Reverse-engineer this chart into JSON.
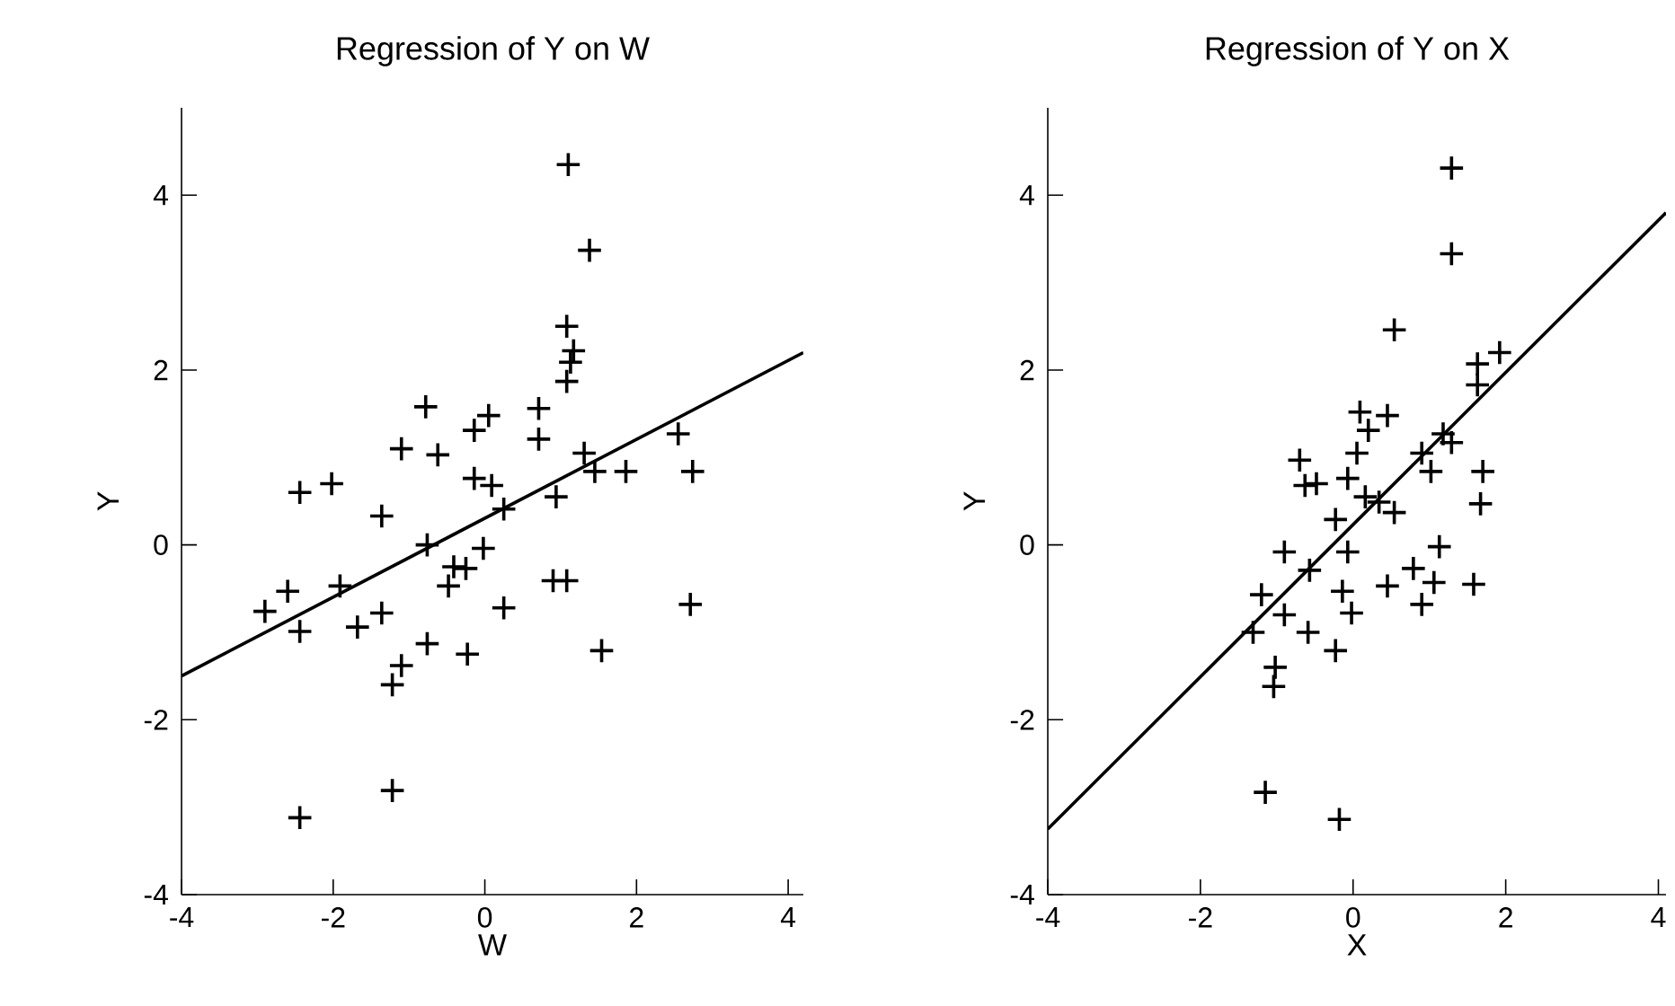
{
  "chart_data": [
    {
      "type": "scatter",
      "title": "Regression of Y on W",
      "xlabel": "W",
      "ylabel": "Y",
      "xlim": [
        -4,
        4.2
      ],
      "ylim": [
        -4,
        5
      ],
      "xticks": [
        -4,
        -2,
        0,
        2,
        4
      ],
      "yticks": [
        -4,
        -2,
        0,
        2,
        4
      ],
      "grid": false,
      "series": [
        {
          "marker": "cross",
          "color": "#000000",
          "x": [
            1.1,
            1.38,
            1.08,
            1.17,
            1.13,
            1.08,
            0.71,
            0.71,
            1.31,
            1.45,
            1.86,
            2.55,
            2.74,
            -0.78,
            -0.62,
            0.05,
            -0.14,
            -1.1,
            -2.02,
            -2.44,
            -1.36,
            -0.14,
            0.09,
            0.25,
            0.94,
            -0.76,
            -0.02,
            -0.41,
            -0.25,
            -0.48,
            0.25,
            0.9,
            1.08,
            2.71,
            1.54,
            -1.91,
            -2.6,
            -2.9,
            -2.44,
            -1.68,
            -1.36,
            -0.76,
            -0.23,
            -1.1,
            -1.22,
            -1.22,
            -2.44
          ],
          "values": [
            4.35,
            3.37,
            2.5,
            2.22,
            2.09,
            1.87,
            1.56,
            1.21,
            1.05,
            0.84,
            0.84,
            1.27,
            0.84,
            1.58,
            1.03,
            1.48,
            1.31,
            1.1,
            0.7,
            0.6,
            0.33,
            0.76,
            0.68,
            0.41,
            0.55,
            0.0,
            -0.04,
            -0.25,
            -0.27,
            -0.47,
            -0.72,
            -0.41,
            -0.41,
            -0.68,
            -1.21,
            -0.47,
            -0.53,
            -0.76,
            -0.99,
            -0.94,
            -0.78,
            -1.13,
            -1.25,
            -1.38,
            -1.6,
            -2.81,
            -3.12
          ]
        },
        {
          "type": "line",
          "marker": "none",
          "color": "#000000",
          "x": [
            -4,
            4.2
          ],
          "values": [
            -1.5,
            2.2
          ]
        }
      ]
    },
    {
      "type": "scatter",
      "title": "Regression of Y on X",
      "xlabel": "X",
      "ylabel": "Y",
      "xlim": [
        -4,
        4.1
      ],
      "ylim": [
        -4,
        5
      ],
      "xticks": [
        -4,
        -2,
        0,
        2,
        4
      ],
      "yticks": [
        -4,
        -2,
        0,
        2,
        4
      ],
      "grid": false,
      "series": [
        {
          "marker": "cross",
          "color": "#000000",
          "x": [
            -0.7,
            -0.63,
            -0.48,
            -0.23,
            -0.9,
            -0.57,
            -1.2,
            -0.9,
            -1.31,
            -0.59,
            -1.02,
            -1.04,
            -1.15,
            -0.23,
            1.29,
            1.29,
            0.54,
            1.92,
            1.63,
            1.63,
            0.09,
            0.45,
            0.2,
            0.05,
            1.18,
            1.29,
            0.9,
            1.02,
            1.7,
            1.67,
            -0.07,
            0.16,
            0.34,
            0.54,
            -0.07,
            -0.14,
            -0.02,
            0.45,
            0.79,
            1.13,
            1.06,
            0.9,
            1.58,
            -0.18
          ],
          "values": [
            0.97,
            0.68,
            0.7,
            0.29,
            -0.08,
            -0.29,
            -0.57,
            -0.8,
            -1.0,
            -1.0,
            -1.4,
            -1.62,
            -2.83,
            -1.21,
            4.31,
            3.33,
            2.46,
            2.2,
            2.07,
            1.83,
            1.52,
            1.48,
            1.31,
            1.05,
            1.27,
            1.17,
            1.05,
            0.84,
            0.84,
            0.47,
            0.76,
            0.55,
            0.49,
            0.37,
            -0.08,
            -0.53,
            -0.78,
            -0.47,
            -0.27,
            -0.02,
            -0.43,
            -0.68,
            -0.45,
            -3.14
          ]
        },
        {
          "type": "line",
          "marker": "none",
          "color": "#000000",
          "x": [
            -4,
            4.1
          ],
          "values": [
            -3.25,
            3.8
          ]
        }
      ]
    }
  ]
}
